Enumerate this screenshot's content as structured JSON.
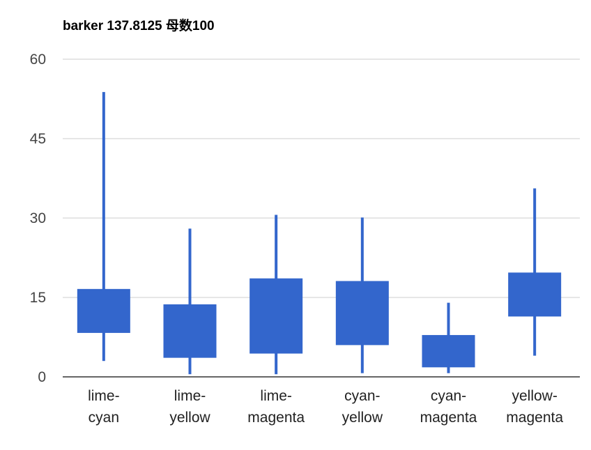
{
  "chart_data": {
    "type": "candlestick",
    "title": "barker 137.8125 母数100",
    "xlabel": "",
    "ylabel": "",
    "ylim": [
      0,
      60
    ],
    "y_ticks": [
      0,
      15,
      30,
      45,
      60
    ],
    "grid": true,
    "legend": "none",
    "color": "#3366cc",
    "categories": [
      [
        "lime-",
        "cyan"
      ],
      [
        "lime-",
        "yellow"
      ],
      [
        "lime-",
        "magenta"
      ],
      [
        "cyan-",
        "yellow"
      ],
      [
        "cyan-",
        "magenta"
      ],
      [
        "yellow-",
        "magenta"
      ]
    ],
    "series": [
      {
        "points": [
          {
            "low": 3.0,
            "open": 8.3,
            "close": 16.6,
            "high": 53.8
          },
          {
            "low": 0.5,
            "open": 3.6,
            "close": 13.7,
            "high": 28.0
          },
          {
            "low": 0.5,
            "open": 4.4,
            "close": 18.6,
            "high": 30.6
          },
          {
            "low": 0.7,
            "open": 6.0,
            "close": 18.1,
            "high": 30.1
          },
          {
            "low": 0.7,
            "open": 1.8,
            "close": 7.9,
            "high": 14.0
          },
          {
            "low": 4.0,
            "open": 11.4,
            "close": 19.7,
            "high": 35.6
          }
        ]
      }
    ]
  }
}
